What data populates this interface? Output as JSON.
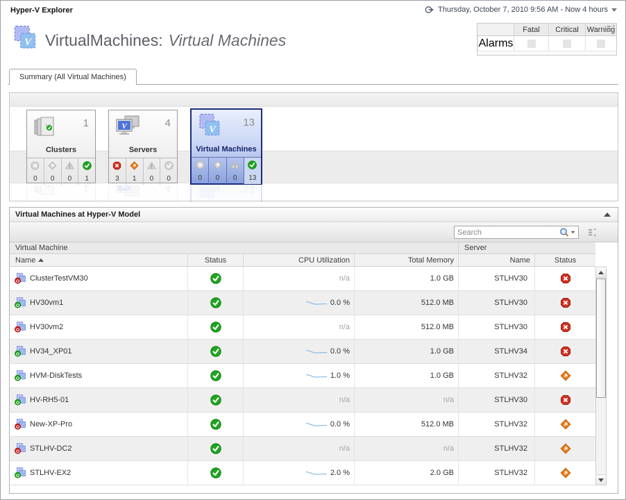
{
  "header": {
    "app_title": "Hyper-V Explorer",
    "time_range": "Thursday, October 7, 2010 9:56 AM - Now 4 hours",
    "title_prefix": "VirtualMachines:",
    "title_suffix": "Virtual Machines"
  },
  "alarms": {
    "label": "Alarms",
    "columns": [
      "Fatal",
      "Critical",
      "Warning"
    ]
  },
  "tab": {
    "label": "Summary (All Virtual Machines)"
  },
  "tiles": [
    {
      "label": "Clusters",
      "count": "1",
      "state": "",
      "icon": "clusters",
      "f_count": "0",
      "f_state": "off",
      "c_count": "0",
      "c_state": "off",
      "w_count": "0",
      "w_state": "off",
      "n_count": "1",
      "n_state": "on",
      "n_cell": ""
    },
    {
      "label": "Servers",
      "count": "4",
      "state": "",
      "icon": "servers",
      "f_count": "3",
      "f_state": "on",
      "c_count": "1",
      "c_state": "on",
      "w_count": "0",
      "w_state": "off",
      "n_count": "0",
      "n_state": "off",
      "n_cell": ""
    },
    {
      "label": "Virtual Machines",
      "count": "13",
      "state": "selected",
      "icon": "vms",
      "f_count": "0",
      "f_state": "off",
      "c_count": "0",
      "c_state": "off",
      "w_count": "0",
      "w_state": "off",
      "n_count": "13",
      "n_state": "on",
      "n_cell": "hl"
    }
  ],
  "panel": {
    "title": "Virtual Machines at Hyper-V Model",
    "search_placeholder": "Search",
    "group_vm": "Virtual Machine",
    "group_server": "Server",
    "col_name": "Name",
    "col_status": "Status",
    "col_cpu": "CPU Utilization",
    "col_memory": "Total Memory",
    "col_server_name": "Name",
    "col_server_status": "Status",
    "rows": [
      {
        "name": "ClusterTestVM30",
        "vm_state": "stopped",
        "status": "normal",
        "cpu": "n/a",
        "cpu_spark": false,
        "memory": "1.0 GB",
        "server": "STLHV30",
        "server_status": "fatal"
      },
      {
        "name": "HV30vm1",
        "vm_state": "running",
        "status": "normal",
        "cpu": "0.0 %",
        "cpu_spark": true,
        "memory": "512.0 MB",
        "server": "STLHV30",
        "server_status": "fatal"
      },
      {
        "name": "HV30vm2",
        "vm_state": "stopped",
        "status": "normal",
        "cpu": "n/a",
        "cpu_spark": false,
        "memory": "512.0 MB",
        "server": "STLHV30",
        "server_status": "fatal"
      },
      {
        "name": "HV34_XP01",
        "vm_state": "running",
        "status": "normal",
        "cpu": "0.0 %",
        "cpu_spark": true,
        "memory": "1.0 GB",
        "server": "STLHV34",
        "server_status": "fatal"
      },
      {
        "name": "HVM-DiskTests",
        "vm_state": "running",
        "status": "normal",
        "cpu": "1.0 %",
        "cpu_spark": true,
        "memory": "1.0 GB",
        "server": "STLHV32",
        "server_status": "critical"
      },
      {
        "name": "HV-RH5-01",
        "vm_state": "running",
        "status": "normal",
        "cpu": "n/a",
        "cpu_spark": false,
        "memory": "n/a",
        "server": "STLHV30",
        "server_status": "fatal"
      },
      {
        "name": "New-XP-Pro",
        "vm_state": "stopped",
        "status": "normal",
        "cpu": "0.0 %",
        "cpu_spark": true,
        "memory": "512.0 MB",
        "server": "STLHV32",
        "server_status": "critical"
      },
      {
        "name": "STLHV-DC2",
        "vm_state": "stopped",
        "status": "normal",
        "cpu": "n/a",
        "cpu_spark": false,
        "memory": "n/a",
        "server": "STLHV32",
        "server_status": "critical"
      },
      {
        "name": "STLHV-EX2",
        "vm_state": "running",
        "status": "normal",
        "cpu": "2.0 %",
        "cpu_spark": true,
        "memory": "2.0 GB",
        "server": "STLHV32",
        "server_status": "critical"
      }
    ]
  },
  "colors": {
    "selected_tile_border": "#1c2c80",
    "status_normal": "#1ea51e",
    "status_fatal": "#d33020",
    "status_critical": "#ee7d18"
  }
}
